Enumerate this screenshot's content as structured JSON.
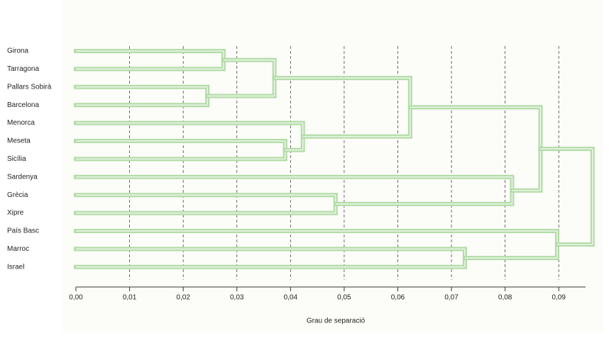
{
  "chart_data": {
    "type": "dendrogram",
    "x_label": "Grau de separació",
    "color": "#b3dca8",
    "xlim": [
      0,
      0.095
    ],
    "xticks": [
      {
        "value": 0,
        "label": "0,00"
      },
      {
        "value": 0.01,
        "label": "0,01"
      },
      {
        "value": 0.02,
        "label": "0,02"
      },
      {
        "value": 0.03,
        "label": "0,03"
      },
      {
        "value": 0.04,
        "label": "0,04"
      },
      {
        "value": 0.05,
        "label": "0,05"
      },
      {
        "value": 0.06,
        "label": "0,06"
      },
      {
        "value": 0.07,
        "label": "0,07"
      },
      {
        "value": 0.08,
        "label": "0,08"
      },
      {
        "value": 0.09,
        "label": "0,09"
      }
    ],
    "grid": true,
    "tree": {
      "height": 0.0963,
      "children": [
        {
          "height": 0.0866,
          "children": [
            {
              "height": 0.0623,
              "children": [
                {
                  "height": 0.037,
                  "children": [
                    {
                      "height": 0.0275,
                      "children": [
                        {
                          "label": "Girona"
                        },
                        {
                          "label": "Tarragona"
                        }
                      ]
                    },
                    {
                      "height": 0.0245,
                      "children": [
                        {
                          "label": "Pallars Sobirà"
                        },
                        {
                          "label": "Barcelona"
                        }
                      ]
                    }
                  ]
                },
                {
                  "height": 0.0423,
                  "children": [
                    {
                      "label": "Menorca"
                    },
                    {
                      "height": 0.039,
                      "children": [
                        {
                          "label": "Meseta"
                        },
                        {
                          "label": "Sicília"
                        }
                      ]
                    }
                  ]
                }
              ]
            },
            {
              "height": 0.0813,
              "children": [
                {
                  "label": "Sardenya"
                },
                {
                  "height": 0.0484,
                  "children": [
                    {
                      "label": "Grècia"
                    },
                    {
                      "label": "Xipre"
                    }
                  ]
                }
              ]
            }
          ]
        },
        {
          "height": 0.0897,
          "children": [
            {
              "label": "País Basc"
            },
            {
              "height": 0.0725,
              "children": [
                {
                  "label": "Marroc"
                },
                {
                  "label": "Israel"
                }
              ]
            }
          ]
        }
      ]
    }
  }
}
